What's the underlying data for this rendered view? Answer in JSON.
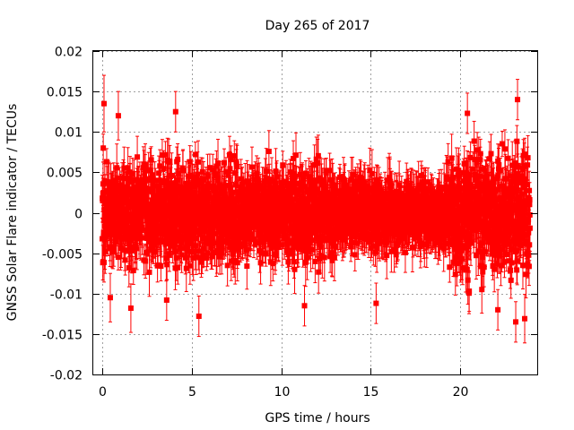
{
  "chart_data": {
    "type": "scatter",
    "title": "Day 265 of 2017",
    "xlabel": "GPS time / hours",
    "ylabel": "GNSS Solar Flare indicator / TECUs",
    "xlim": [
      -0.5,
      24.3
    ],
    "ylim": [
      -0.02,
      0.02
    ],
    "grid": true,
    "legend": "none",
    "x_ticks": [
      0,
      5,
      10,
      15,
      20
    ],
    "y_ticks": [
      -0.02,
      -0.015,
      -0.01,
      -0.005,
      0,
      0.005,
      0.01,
      0.015,
      0.02
    ],
    "x_tick_labels": [
      "0",
      "5",
      "10",
      "15",
      "20"
    ],
    "y_tick_labels": [
      "-0.02",
      "-0.015",
      "-0.01",
      "-0.005",
      "0",
      "0.005",
      "0.01",
      "0.015",
      "0.02"
    ],
    "marker_color": "#ff0000",
    "series": [
      {
        "sampling_interval_hours": 0.0083,
        "x_range": [
          0,
          23.9
        ],
        "y_mean": 0.0,
        "y_spread_sd": 0.0035,
        "y_extremes": {
          "min": -0.0135,
          "max": 0.0145
        },
        "error_bar_halfwidth_typical": 0.0025,
        "points": [
          {
            "x": 0.1,
            "y": 0.0135,
            "err": 0.0035
          },
          {
            "x": 0.45,
            "y": -0.0105,
            "err": 0.003
          },
          {
            "x": 0.9,
            "y": 0.012,
            "err": 0.003
          },
          {
            "x": 1.6,
            "y": -0.0118,
            "err": 0.003
          },
          {
            "x": 3.6,
            "y": -0.0108,
            "err": 0.0025
          },
          {
            "x": 4.1,
            "y": 0.0125,
            "err": 0.0025
          },
          {
            "x": 5.4,
            "y": -0.0128,
            "err": 0.0025
          },
          {
            "x": 11.3,
            "y": -0.0115,
            "err": 0.0025
          },
          {
            "x": 15.3,
            "y": -0.0112,
            "err": 0.0025
          },
          {
            "x": 20.4,
            "y": 0.0123,
            "err": 0.0025
          },
          {
            "x": 20.5,
            "y": -0.0097,
            "err": 0.0025
          },
          {
            "x": 22.1,
            "y": -0.012,
            "err": 0.0025
          },
          {
            "x": 23.1,
            "y": -0.0135,
            "err": 0.0025
          },
          {
            "x": 23.2,
            "y": 0.014,
            "err": 0.0025
          },
          {
            "x": 23.6,
            "y": -0.0131,
            "err": 0.003
          }
        ]
      }
    ]
  }
}
